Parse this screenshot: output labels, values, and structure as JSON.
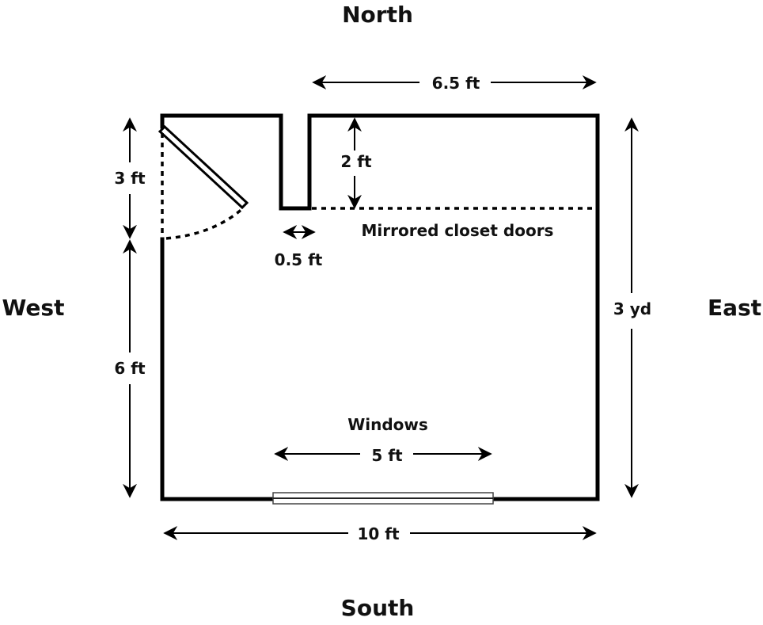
{
  "compass": {
    "north": "North",
    "south": "South",
    "east": "East",
    "west": "West"
  },
  "dimensions": {
    "top_right": "6.5 ft",
    "closet_depth": "2 ft",
    "closet_gap": "0.5 ft",
    "door_width": "3 ft",
    "west_lower": "6 ft",
    "east": "3 yd",
    "window_width": "5 ft",
    "south": "10 ft"
  },
  "labels": {
    "closet": "Mirrored closet doors",
    "windows": "Windows"
  }
}
